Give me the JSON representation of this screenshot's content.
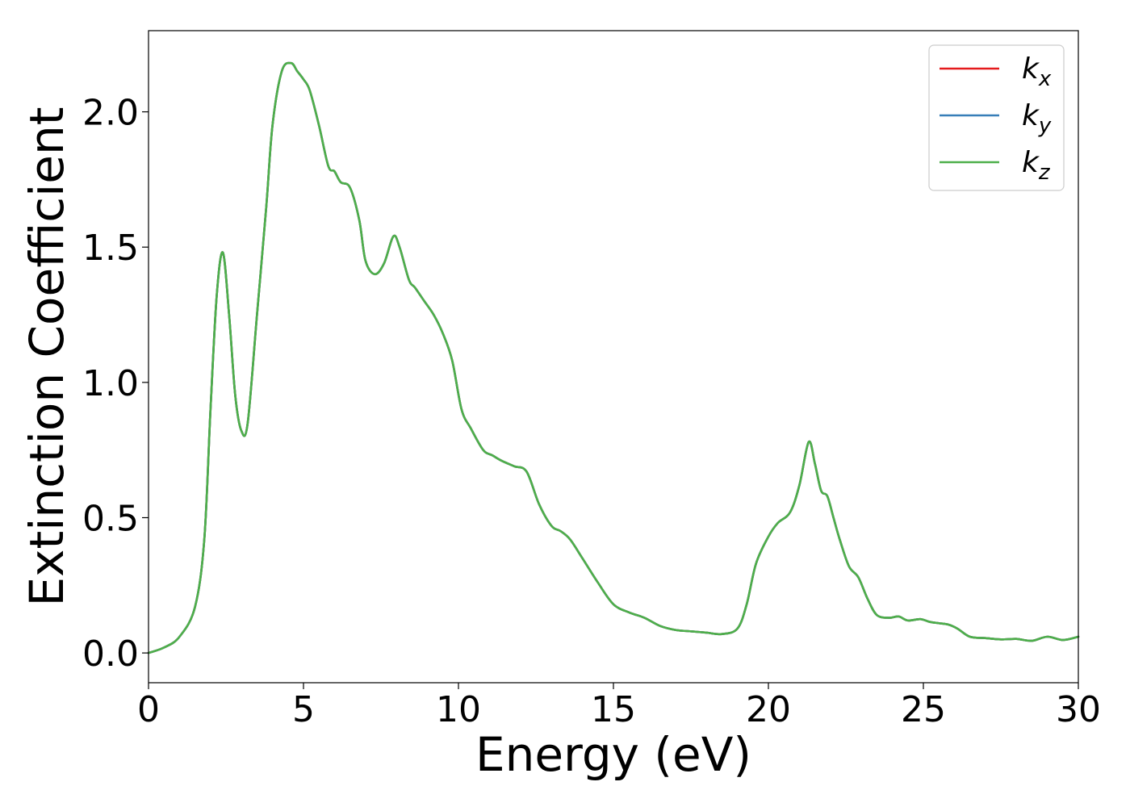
{
  "chart_data": {
    "type": "line",
    "xlabel": "Energy (eV)",
    "ylabel": "Extinction Coefficient",
    "xlim": [
      0,
      30
    ],
    "ylim": [
      -0.11,
      2.3
    ],
    "xticks": [
      "0",
      "5",
      "10",
      "15",
      "20",
      "25",
      "30"
    ],
    "yticks": [
      "0.0",
      "0.5",
      "1.0",
      "1.5",
      "2.0"
    ],
    "grid": false,
    "legend_position": "top-right",
    "x": [
      0,
      0.5,
      1.0,
      1.5,
      1.8,
      2.0,
      2.2,
      2.4,
      2.6,
      2.8,
      3.0,
      3.2,
      3.5,
      3.8,
      4.0,
      4.3,
      4.6,
      4.8,
      5.0,
      5.2,
      5.5,
      5.8,
      6.0,
      6.2,
      6.5,
      6.8,
      7.0,
      7.3,
      7.6,
      7.9,
      8.1,
      8.4,
      8.6,
      8.9,
      9.2,
      9.5,
      9.8,
      10.1,
      10.4,
      10.8,
      11.1,
      11.4,
      11.8,
      12.2,
      12.6,
      13.0,
      13.3,
      13.6,
      14.0,
      14.5,
      15.0,
      15.5,
      16.0,
      16.5,
      17.0,
      17.5,
      18.0,
      18.5,
      19.0,
      19.3,
      19.6,
      20.0,
      20.3,
      20.7,
      21.0,
      21.3,
      21.5,
      21.7,
      21.9,
      22.1,
      22.3,
      22.6,
      22.9,
      23.2,
      23.5,
      23.9,
      24.2,
      24.5,
      24.9,
      25.2,
      25.5,
      25.8,
      26.1,
      26.5,
      27.0,
      27.5,
      28.0,
      28.5,
      29.0,
      29.5,
      30.0
    ],
    "series": [
      {
        "name": "k_x",
        "color": "#e41a1c",
        "values": [
          0.0,
          0.02,
          0.06,
          0.17,
          0.42,
          0.9,
          1.32,
          1.48,
          1.25,
          0.95,
          0.82,
          0.85,
          1.25,
          1.65,
          1.95,
          2.15,
          2.18,
          2.15,
          2.12,
          2.08,
          1.95,
          1.8,
          1.78,
          1.74,
          1.72,
          1.6,
          1.45,
          1.4,
          1.44,
          1.54,
          1.5,
          1.38,
          1.35,
          1.3,
          1.25,
          1.18,
          1.08,
          0.9,
          0.83,
          0.75,
          0.73,
          0.71,
          0.69,
          0.67,
          0.55,
          0.47,
          0.45,
          0.42,
          0.35,
          0.26,
          0.18,
          0.15,
          0.13,
          0.1,
          0.085,
          0.08,
          0.075,
          0.07,
          0.09,
          0.18,
          0.33,
          0.43,
          0.48,
          0.52,
          0.62,
          0.78,
          0.7,
          0.6,
          0.58,
          0.5,
          0.42,
          0.32,
          0.28,
          0.2,
          0.14,
          0.13,
          0.135,
          0.12,
          0.125,
          0.115,
          0.11,
          0.105,
          0.09,
          0.06,
          0.055,
          0.05,
          0.052,
          0.045,
          0.06,
          0.048,
          0.06
        ]
      },
      {
        "name": "k_y",
        "color": "#377eb8",
        "values": [
          0.0,
          0.02,
          0.06,
          0.17,
          0.42,
          0.9,
          1.32,
          1.48,
          1.25,
          0.95,
          0.82,
          0.85,
          1.25,
          1.65,
          1.95,
          2.15,
          2.18,
          2.15,
          2.12,
          2.08,
          1.95,
          1.8,
          1.78,
          1.74,
          1.72,
          1.6,
          1.45,
          1.4,
          1.44,
          1.54,
          1.5,
          1.38,
          1.35,
          1.3,
          1.25,
          1.18,
          1.08,
          0.9,
          0.83,
          0.75,
          0.73,
          0.71,
          0.69,
          0.67,
          0.55,
          0.47,
          0.45,
          0.42,
          0.35,
          0.26,
          0.18,
          0.15,
          0.13,
          0.1,
          0.085,
          0.08,
          0.075,
          0.07,
          0.09,
          0.18,
          0.33,
          0.43,
          0.48,
          0.52,
          0.62,
          0.78,
          0.7,
          0.6,
          0.58,
          0.5,
          0.42,
          0.32,
          0.28,
          0.2,
          0.14,
          0.13,
          0.135,
          0.12,
          0.125,
          0.115,
          0.11,
          0.105,
          0.09,
          0.06,
          0.055,
          0.05,
          0.052,
          0.045,
          0.06,
          0.048,
          0.06
        ]
      },
      {
        "name": "k_z",
        "color": "#4daf4a",
        "values": [
          0.0,
          0.02,
          0.06,
          0.17,
          0.42,
          0.9,
          1.32,
          1.48,
          1.25,
          0.95,
          0.82,
          0.85,
          1.25,
          1.65,
          1.95,
          2.15,
          2.18,
          2.15,
          2.12,
          2.08,
          1.95,
          1.8,
          1.78,
          1.74,
          1.72,
          1.6,
          1.45,
          1.4,
          1.44,
          1.54,
          1.5,
          1.38,
          1.35,
          1.3,
          1.25,
          1.18,
          1.08,
          0.9,
          0.83,
          0.75,
          0.73,
          0.71,
          0.69,
          0.67,
          0.55,
          0.47,
          0.45,
          0.42,
          0.35,
          0.26,
          0.18,
          0.15,
          0.13,
          0.1,
          0.085,
          0.08,
          0.075,
          0.07,
          0.09,
          0.18,
          0.33,
          0.43,
          0.48,
          0.52,
          0.62,
          0.78,
          0.7,
          0.6,
          0.58,
          0.5,
          0.42,
          0.32,
          0.28,
          0.2,
          0.14,
          0.13,
          0.135,
          0.12,
          0.125,
          0.115,
          0.11,
          0.105,
          0.09,
          0.06,
          0.055,
          0.05,
          0.052,
          0.045,
          0.06,
          0.048,
          0.06
        ]
      }
    ],
    "legend": [
      {
        "base": "k",
        "sub": "x",
        "color": "#e41a1c"
      },
      {
        "base": "k",
        "sub": "y",
        "color": "#377eb8"
      },
      {
        "base": "k",
        "sub": "z",
        "color": "#4daf4a"
      }
    ]
  }
}
